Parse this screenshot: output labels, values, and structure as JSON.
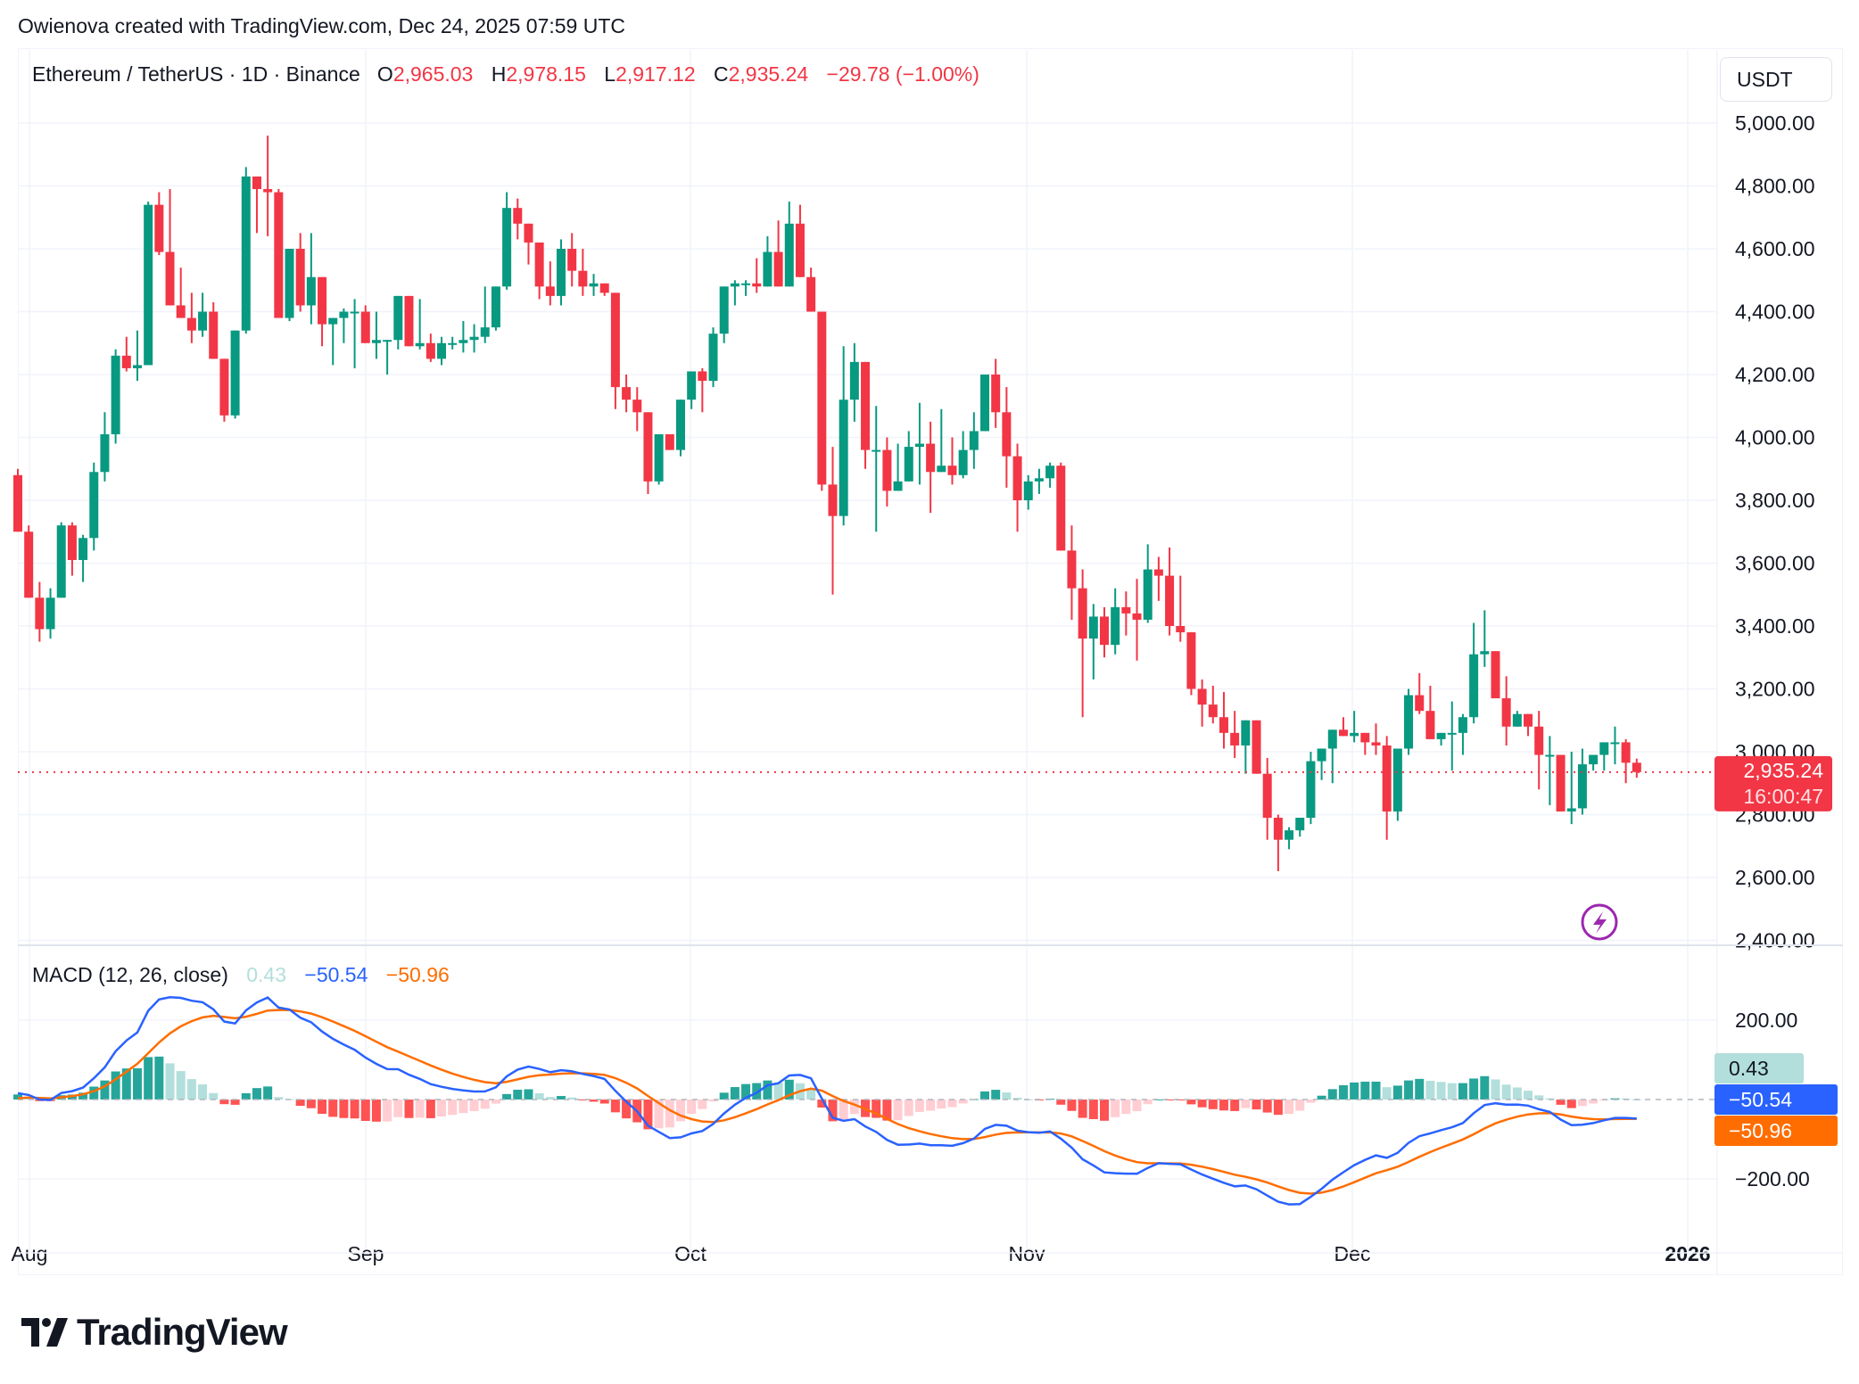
{
  "attribution": "Owienova created with TradingView.com, Dec 24, 2025 07:59 UTC",
  "header": {
    "symbol": "Ethereum / TetherUS · 1D · Binance",
    "open_key": "O",
    "open": "2,965.03",
    "high_key": "H",
    "high": "2,978.15",
    "low_key": "L",
    "low": "2,917.12",
    "close_key": "C",
    "close": "2,935.24",
    "change": "−29.78 (−1.00%)"
  },
  "currency_button": "USDT",
  "price_label": {
    "value": "2,935.24",
    "countdown": "16:00:47"
  },
  "macd": {
    "title": "MACD (12, 26, close)",
    "histogram": "0.43",
    "macd": "−50.54",
    "signal": "−50.96",
    "label_hist": "0.43",
    "label_macd": "−50.54",
    "label_signal": "−50.96"
  },
  "logo": {
    "text": "TradingView"
  },
  "colors": {
    "up": "#089981",
    "down": "#f23645",
    "hist_up_strong": "#26a69a",
    "hist_up_weak": "#b2dfdb",
    "hist_down_strong": "#ff5252",
    "hist_down_weak": "#ffcdd2",
    "macd_line": "#2962ff",
    "signal_line": "#ff6d00",
    "lightning": "#9c27b0"
  },
  "chart_data": [
    {
      "type": "candlestick",
      "title": "Ethereum / TetherUS · 1D · Binance",
      "xlabel": "",
      "ylabel": "USDT",
      "x_tick_labels": [
        "Aug",
        "Sep",
        "Oct",
        "Nov",
        "Dec",
        "2026"
      ],
      "y_tick_labels": [
        "5,000.00",
        "4,800.00",
        "4,600.00",
        "4,400.00",
        "4,200.00",
        "4,000.00",
        "3,800.00",
        "3,600.00",
        "3,400.00",
        "3,200.00",
        "3,000.00",
        "2,800.00",
        "2,600.00",
        "2,400.00"
      ],
      "ylim": [
        2400,
        5000
      ],
      "grid": true,
      "start_date": "2025-07-31",
      "last": {
        "open": 2965.03,
        "high": 2978.15,
        "low": 2917.12,
        "close": 2935.24,
        "change": -29.78,
        "change_pct": -1.0
      },
      "ohlc": [
        [
          3880,
          3900,
          3700,
          3700
        ],
        [
          3700,
          3720,
          3530,
          3490
        ],
        [
          3490,
          3540,
          3350,
          3390
        ],
        [
          3390,
          3520,
          3360,
          3490
        ],
        [
          3490,
          3730,
          3500,
          3720
        ],
        [
          3720,
          3730,
          3560,
          3610
        ],
        [
          3610,
          3690,
          3540,
          3680
        ],
        [
          3680,
          3920,
          3640,
          3890
        ],
        [
          3890,
          4080,
          3860,
          4010
        ],
        [
          4010,
          4280,
          3980,
          4260
        ],
        [
          4260,
          4320,
          4210,
          4220
        ],
        [
          4220,
          4340,
          4180,
          4230
        ],
        [
          4230,
          4750,
          4230,
          4740
        ],
        [
          4740,
          4780,
          4580,
          4590
        ],
        [
          4590,
          4790,
          4420,
          4420
        ],
        [
          4420,
          4540,
          4380,
          4380
        ],
        [
          4380,
          4460,
          4300,
          4340
        ],
        [
          4340,
          4460,
          4320,
          4400
        ],
        [
          4400,
          4430,
          4250,
          4250
        ],
        [
          4250,
          4250,
          4050,
          4070
        ],
        [
          4070,
          4340,
          4060,
          4340
        ],
        [
          4340,
          4860,
          4330,
          4830
        ],
        [
          4830,
          4830,
          4650,
          4790
        ],
        [
          4790,
          4960,
          4640,
          4780
        ],
        [
          4780,
          4790,
          4380,
          4380
        ],
        [
          4380,
          4600,
          4370,
          4600
        ],
        [
          4600,
          4650,
          4400,
          4420
        ],
        [
          4420,
          4650,
          4360,
          4510
        ],
        [
          4510,
          4510,
          4290,
          4360
        ],
        [
          4360,
          4380,
          4230,
          4380
        ],
        [
          4380,
          4410,
          4300,
          4400
        ],
        [
          4400,
          4440,
          4220,
          4400
        ],
        [
          4400,
          4420,
          4300,
          4300
        ],
        [
          4300,
          4400,
          4250,
          4310
        ],
        [
          4310,
          4310,
          4200,
          4310
        ],
        [
          4310,
          4450,
          4280,
          4450
        ],
        [
          4450,
          4450,
          4290,
          4290
        ],
        [
          4290,
          4440,
          4280,
          4300
        ],
        [
          4300,
          4330,
          4240,
          4250
        ],
        [
          4250,
          4320,
          4230,
          4300
        ],
        [
          4300,
          4320,
          4280,
          4300
        ],
        [
          4300,
          4370,
          4270,
          4310
        ],
        [
          4310,
          4360,
          4270,
          4320
        ],
        [
          4320,
          4480,
          4300,
          4350
        ],
        [
          4350,
          4470,
          4340,
          4480
        ],
        [
          4480,
          4780,
          4470,
          4730
        ],
        [
          4730,
          4760,
          4630,
          4680
        ],
        [
          4680,
          4640,
          4550,
          4620
        ],
        [
          4620,
          4590,
          4440,
          4480
        ],
        [
          4480,
          4560,
          4420,
          4450
        ],
        [
          4450,
          4630,
          4420,
          4600
        ],
        [
          4600,
          4650,
          4480,
          4530
        ],
        [
          4530,
          4600,
          4450,
          4480
        ],
        [
          4480,
          4520,
          4450,
          4490
        ],
        [
          4490,
          4490,
          4450,
          4460
        ],
        [
          4460,
          4450,
          4090,
          4160
        ],
        [
          4160,
          4200,
          4080,
          4120
        ],
        [
          4120,
          4160,
          4020,
          4080
        ],
        [
          4080,
          4050,
          3820,
          3860
        ],
        [
          3860,
          4000,
          3850,
          4010
        ],
        [
          4010,
          4000,
          3960,
          3960
        ],
        [
          3960,
          4100,
          3940,
          4120
        ],
        [
          4120,
          4200,
          4090,
          4210
        ],
        [
          4210,
          4220,
          4080,
          4180
        ],
        [
          4180,
          4350,
          4160,
          4330
        ],
        [
          4330,
          4470,
          4300,
          4480
        ],
        [
          4480,
          4500,
          4420,
          4490
        ],
        [
          4490,
          4500,
          4450,
          4490
        ],
        [
          4490,
          4570,
          4460,
          4480
        ],
        [
          4480,
          4640,
          4480,
          4590
        ],
        [
          4590,
          4690,
          4580,
          4480
        ],
        [
          4480,
          4750,
          4480,
          4680
        ],
        [
          4680,
          4740,
          4510,
          4510
        ],
        [
          4510,
          4540,
          4400,
          4400
        ],
        [
          4400,
          4380,
          3830,
          3850
        ],
        [
          3850,
          3970,
          3500,
          3750
        ],
        [
          3750,
          4290,
          3720,
          4120
        ],
        [
          4120,
          4300,
          4050,
          4240
        ],
        [
          4240,
          4200,
          3900,
          3960
        ],
        [
          3960,
          4100,
          3700,
          3960
        ],
        [
          3960,
          4000,
          3780,
          3830
        ],
        [
          3830,
          3980,
          3830,
          3860
        ],
        [
          3860,
          4020,
          3870,
          3970
        ],
        [
          3970,
          4110,
          3850,
          3980
        ],
        [
          3980,
          4050,
          3760,
          3890
        ],
        [
          3890,
          4090,
          3890,
          3910
        ],
        [
          3910,
          4000,
          3850,
          3880
        ],
        [
          3880,
          4020,
          3870,
          3960
        ],
        [
          3960,
          4080,
          3900,
          4020
        ],
        [
          4020,
          4200,
          4020,
          4200
        ],
        [
          4200,
          4250,
          4030,
          4080
        ],
        [
          4080,
          4160,
          3840,
          3940
        ],
        [
          3940,
          3980,
          3700,
          3800
        ],
        [
          3800,
          3880,
          3770,
          3860
        ],
        [
          3860,
          3900,
          3820,
          3870
        ],
        [
          3870,
          3920,
          3840,
          3910
        ],
        [
          3910,
          3920,
          3680,
          3640
        ],
        [
          3640,
          3720,
          3420,
          3520
        ],
        [
          3520,
          3580,
          3110,
          3360
        ],
        [
          3360,
          3470,
          3230,
          3430
        ],
        [
          3430,
          3460,
          3300,
          3340
        ],
        [
          3340,
          3520,
          3310,
          3460
        ],
        [
          3460,
          3510,
          3370,
          3440
        ],
        [
          3440,
          3550,
          3290,
          3420
        ],
        [
          3420,
          3660,
          3410,
          3580
        ],
        [
          3580,
          3620,
          3480,
          3560
        ],
        [
          3560,
          3650,
          3370,
          3400
        ],
        [
          3400,
          3560,
          3350,
          3380
        ],
        [
          3380,
          3380,
          3180,
          3200
        ],
        [
          3200,
          3230,
          3080,
          3150
        ],
        [
          3150,
          3210,
          3090,
          3110
        ],
        [
          3110,
          3190,
          3010,
          3060
        ],
        [
          3060,
          3130,
          2980,
          3020
        ],
        [
          3020,
          3100,
          2930,
          3100
        ],
        [
          3100,
          3100,
          2930,
          2930
        ],
        [
          2930,
          2980,
          2720,
          2790
        ],
        [
          2790,
          2800,
          2620,
          2720
        ],
        [
          2720,
          2760,
          2690,
          2750
        ],
        [
          2750,
          2790,
          2730,
          2790
        ],
        [
          2790,
          3000,
          2770,
          2970
        ],
        [
          2970,
          3010,
          2910,
          3010
        ],
        [
          3010,
          3060,
          2900,
          3070
        ],
        [
          3070,
          3110,
          3050,
          3050
        ],
        [
          3050,
          3130,
          3030,
          3060
        ],
        [
          3060,
          3060,
          2990,
          3030
        ],
        [
          3030,
          3090,
          2990,
          3020
        ],
        [
          3020,
          3050,
          2720,
          2810
        ],
        [
          2810,
          3010,
          2780,
          3010
        ],
        [
          3010,
          3200,
          2990,
          3180
        ],
        [
          3180,
          3250,
          3120,
          3130
        ],
        [
          3130,
          3210,
          3050,
          3040
        ],
        [
          3040,
          3060,
          3020,
          3060
        ],
        [
          3060,
          3160,
          2940,
          3060
        ],
        [
          3060,
          3120,
          2990,
          3110
        ],
        [
          3110,
          3410,
          3090,
          3310
        ],
        [
          3310,
          3450,
          3270,
          3320
        ],
        [
          3320,
          3300,
          3180,
          3170
        ],
        [
          3170,
          3240,
          3020,
          3080
        ],
        [
          3080,
          3130,
          3080,
          3120
        ],
        [
          3120,
          3120,
          3050,
          3080
        ],
        [
          3080,
          3130,
          2880,
          2990
        ],
        [
          2990,
          3050,
          2830,
          2990
        ],
        [
          2990,
          2990,
          2830,
          2810
        ],
        [
          2810,
          3000,
          2770,
          2820
        ],
        [
          2820,
          3010,
          2800,
          2960
        ],
        [
          2960,
          2990,
          2940,
          2990
        ],
        [
          2990,
          3010,
          2940,
          3030
        ],
        [
          3030,
          3080,
          2960,
          3030
        ],
        [
          3030,
          3040,
          2900,
          2965
        ],
        [
          2965.03,
          2978.15,
          2917.12,
          2935.24
        ]
      ]
    },
    {
      "type": "line",
      "title": "MACD (12, 26, close)",
      "ylim": [
        -280,
        330
      ],
      "y_tick_labels": [
        "200.00",
        "−200.00"
      ],
      "series": [
        {
          "name": "MACD",
          "color": "#2962ff",
          "last": -50.54
        },
        {
          "name": "Signal",
          "color": "#ff6d00",
          "last": -50.96
        },
        {
          "name": "Histogram",
          "type": "bar",
          "last": 0.43
        }
      ]
    }
  ]
}
